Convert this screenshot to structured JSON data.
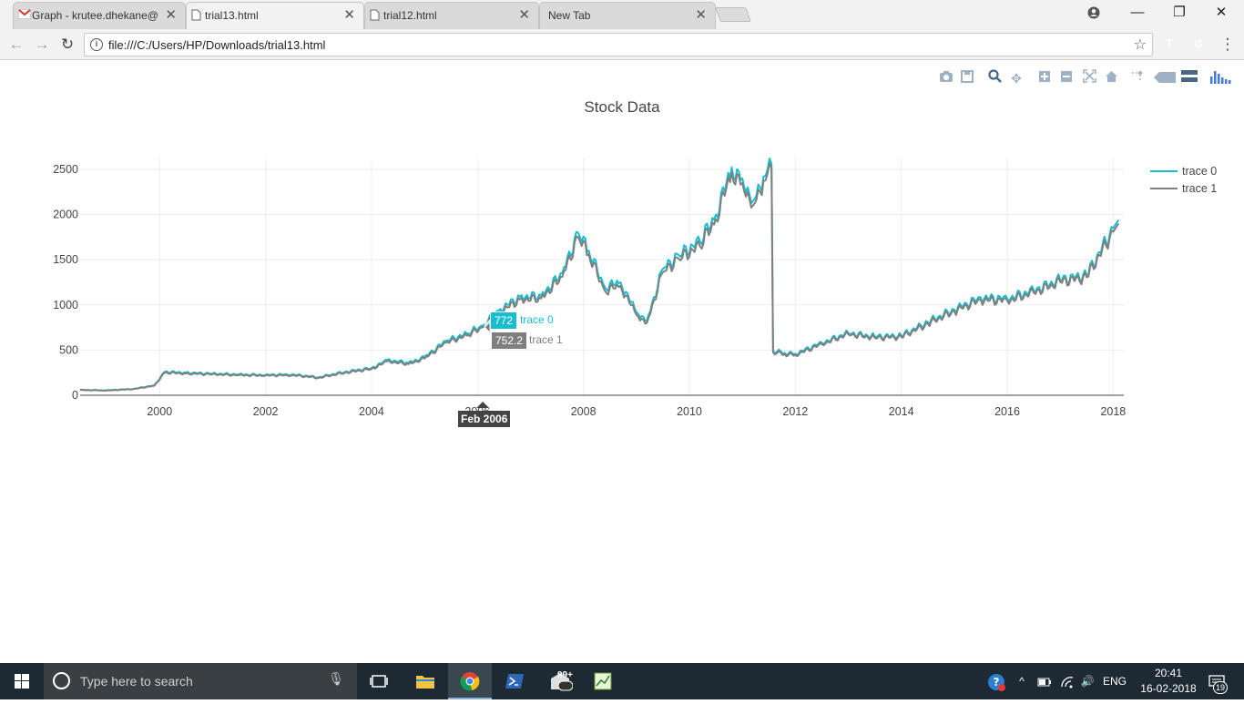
{
  "browser": {
    "tabs": [
      {
        "title": "Graph - krutee.dhekane@",
        "icon": "gmail-icon"
      },
      {
        "title": "trial13.html",
        "icon": "document-icon",
        "active": true
      },
      {
        "title": "trial12.html",
        "icon": "document-icon"
      },
      {
        "title": "New Tab",
        "icon": ""
      }
    ],
    "url": "file:///C:/Users/HP/Downloads/trial13.html",
    "extensions": [
      {
        "name": "t-extension-icon",
        "letter": "T",
        "color": "#1da1f2"
      },
      {
        "name": "grammarly-icon",
        "letter": "G",
        "color": "#15c39a"
      }
    ]
  },
  "chart_data": {
    "type": "line",
    "title": "Stock Data",
    "xlabel": "",
    "ylabel": "",
    "x_ticks": [
      "2000",
      "2002",
      "2004",
      "2006",
      "2008",
      "2010",
      "2012",
      "2014",
      "2016",
      "2018"
    ],
    "y_ticks": [
      "0",
      "500",
      "1000",
      "1500",
      "2000",
      "2500"
    ],
    "xlim": [
      1998.5,
      2018.2
    ],
    "ylim": [
      0,
      2620
    ],
    "grid": true,
    "legend_position": "top-right",
    "x": [
      1998.5,
      1999.0,
      1999.5,
      1999.9,
      2000.1,
      2000.5,
      2001.0,
      2001.5,
      2002.0,
      2002.5,
      2003.0,
      2003.5,
      2004.0,
      2004.3,
      2004.7,
      2005.0,
      2005.4,
      2005.8,
      2006.1,
      2006.4,
      2006.8,
      2007.2,
      2007.6,
      2007.9,
      2008.1,
      2008.4,
      2008.7,
      2009.0,
      2009.2,
      2009.5,
      2009.8,
      2010.2,
      2010.5,
      2010.8,
      2011.0,
      2011.2,
      2011.4,
      2011.55,
      2011.58,
      2011.8,
      2012.0,
      2012.5,
      2013.0,
      2013.5,
      2014.0,
      2014.5,
      2015.0,
      2015.5,
      2016.0,
      2016.5,
      2017.0,
      2017.5,
      2018.0,
      2018.1
    ],
    "series": [
      {
        "name": "trace 0",
        "color": "#17becf",
        "values": [
          60,
          55,
          70,
          110,
          260,
          250,
          240,
          230,
          225,
          230,
          200,
          260,
          300,
          390,
          360,
          420,
          600,
          680,
          772,
          940,
          1090,
          1100,
          1350,
          1800,
          1600,
          1200,
          1250,
          920,
          830,
          1400,
          1550,
          1700,
          2000,
          2520,
          2400,
          2150,
          2420,
          2560,
          490,
          470,
          460,
          580,
          690,
          650,
          660,
          810,
          950,
          1080,
          1070,
          1160,
          1280,
          1330,
          1850,
          1940
        ]
      },
      {
        "name": "trace 1",
        "color": "#7f7f7f",
        "values": [
          58,
          52,
          68,
          105,
          250,
          240,
          232,
          222,
          218,
          222,
          193,
          250,
          290,
          375,
          345,
          405,
          580,
          660,
          752.2,
          910,
          1060,
          1070,
          1310,
          1750,
          1560,
          1160,
          1210,
          890,
          800,
          1360,
          1510,
          1650,
          1950,
          2470,
          2350,
          2100,
          2370,
          2510,
          475,
          455,
          445,
          565,
          675,
          635,
          645,
          790,
          930,
          1055,
          1045,
          1135,
          1255,
          1305,
          1810,
          1900
        ]
      }
    ]
  },
  "hover": {
    "x_label": "Feb 2006",
    "points": [
      {
        "value": "772",
        "name": "trace 0"
      },
      {
        "value": "752.2",
        "name": "trace 1"
      }
    ]
  },
  "modebar": [
    "camera-icon",
    "save-icon",
    "zoom-icon",
    "pan-icon",
    "zoom-in-icon",
    "zoom-out-icon",
    "autoscale-icon",
    "reset-axes-icon",
    "spike-lines-icon",
    "hover-closest-icon",
    "hover-compare-icon",
    "plotly-logo-icon"
  ],
  "taskbar": {
    "search_placeholder": "Type here to search",
    "badge": "99+",
    "language": "ENG",
    "time": "20:41",
    "date": "16-02-2018",
    "notifications": "19"
  }
}
